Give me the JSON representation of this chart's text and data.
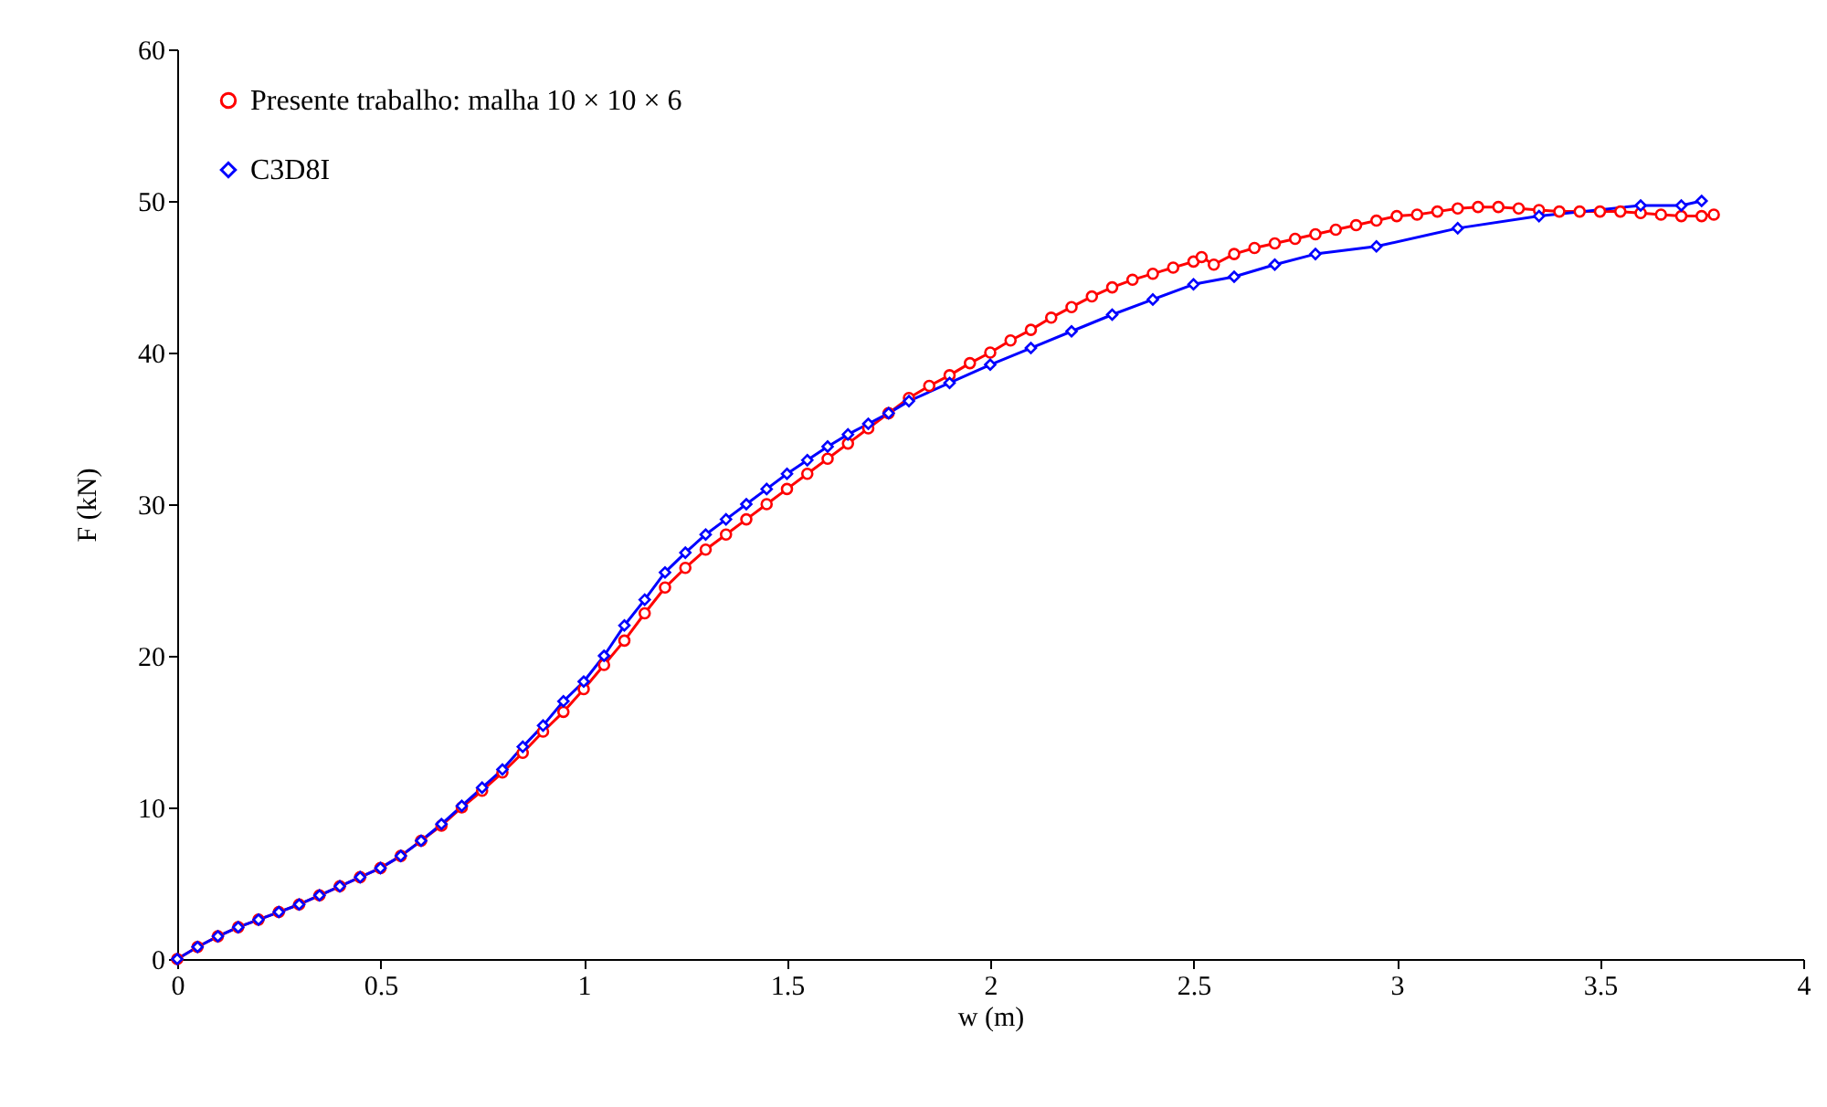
{
  "chart_data": {
    "type": "line",
    "xlabel": "w (m)",
    "ylabel": "F (kN)",
    "xlim": [
      0,
      4
    ],
    "ylim": [
      0,
      60
    ],
    "xticks": [
      0,
      0.5,
      1,
      1.5,
      2,
      2.5,
      3,
      3.5,
      4
    ],
    "yticks": [
      0,
      10,
      20,
      30,
      40,
      50,
      60
    ],
    "grid": false,
    "legend": "top left",
    "line_style": "solid",
    "series": [
      {
        "name": "Presente trabalho: malha 10 × 10 × 6",
        "color": "#ff0000",
        "marker": "circle",
        "x": [
          0,
          0.05,
          0.1,
          0.15,
          0.2,
          0.25,
          0.3,
          0.35,
          0.4,
          0.45,
          0.5,
          0.55,
          0.6,
          0.65,
          0.7,
          0.75,
          0.8,
          0.85,
          0.9,
          0.95,
          1,
          1.05,
          1.1,
          1.15,
          1.2,
          1.25,
          1.3,
          1.35,
          1.4,
          1.45,
          1.5,
          1.55,
          1.6,
          1.65,
          1.7,
          1.75,
          1.8,
          1.85,
          1.9,
          1.95,
          2,
          2.05,
          2.1,
          2.15,
          2.2,
          2.25,
          2.3,
          2.35,
          2.4,
          2.45,
          2.5,
          2.52,
          2.55,
          2.6,
          2.65,
          2.7,
          2.75,
          2.8,
          2.85,
          2.9,
          2.95,
          3,
          3.05,
          3.1,
          3.15,
          3.2,
          3.25,
          3.3,
          3.35,
          3.4,
          3.45,
          3.5,
          3.55,
          3.6,
          3.65,
          3.7,
          3.75,
          3.78
        ],
        "values": [
          0,
          0.8,
          1.5,
          2.1,
          2.6,
          3.1,
          3.6,
          4.2,
          4.8,
          5.4,
          6,
          6.8,
          7.8,
          8.8,
          10,
          11.1,
          12.3,
          13.6,
          15,
          16.3,
          17.8,
          19.4,
          21,
          22.8,
          24.5,
          25.8,
          27,
          28,
          29,
          30,
          31,
          32,
          33,
          34,
          35,
          36,
          37,
          37.8,
          38.5,
          39.3,
          40,
          40.8,
          41.5,
          42.3,
          43,
          43.7,
          44.3,
          44.8,
          45.2,
          45.6,
          46,
          46.3,
          45.8,
          46.5,
          46.9,
          47.2,
          47.5,
          47.8,
          48.1,
          48.4,
          48.7,
          49,
          49.1,
          49.3,
          49.5,
          49.6,
          49.6,
          49.5,
          49.4,
          49.3,
          49.3,
          49.3,
          49.3,
          49.2,
          49.1,
          49,
          49,
          49.1
        ]
      },
      {
        "name": "C3D8I",
        "color": "#0000ff",
        "marker": "diamond",
        "x": [
          0,
          0.05,
          0.1,
          0.15,
          0.2,
          0.25,
          0.3,
          0.35,
          0.4,
          0.45,
          0.5,
          0.55,
          0.6,
          0.65,
          0.7,
          0.75,
          0.8,
          0.85,
          0.9,
          0.95,
          1,
          1.05,
          1.1,
          1.15,
          1.2,
          1.25,
          1.3,
          1.35,
          1.4,
          1.45,
          1.5,
          1.55,
          1.6,
          1.65,
          1.7,
          1.75,
          1.8,
          1.9,
          2,
          2.1,
          2.2,
          2.3,
          2.4,
          2.5,
          2.6,
          2.7,
          2.8,
          2.95,
          3.15,
          3.35,
          3.6,
          3.7,
          3.75
        ],
        "values": [
          0,
          0.8,
          1.5,
          2.1,
          2.6,
          3.1,
          3.6,
          4.2,
          4.8,
          5.4,
          6,
          6.8,
          7.8,
          8.9,
          10.1,
          11.3,
          12.5,
          14,
          15.4,
          17,
          18.3,
          20,
          22,
          23.7,
          25.5,
          26.8,
          28,
          29,
          30,
          31,
          32,
          32.9,
          33.8,
          34.6,
          35.3,
          36,
          36.8,
          38,
          39.2,
          40.3,
          41.4,
          42.5,
          43.5,
          44.5,
          45,
          45.8,
          46.5,
          47,
          48.2,
          49,
          49.7,
          49.7,
          50
        ]
      }
    ]
  }
}
